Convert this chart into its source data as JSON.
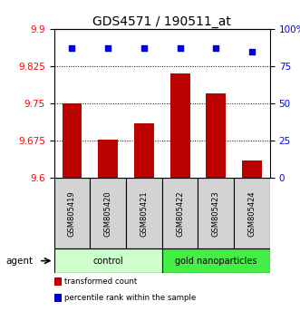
{
  "title": "GDS4571 / 190511_at",
  "samples": [
    "GSM805419",
    "GSM805420",
    "GSM805421",
    "GSM805422",
    "GSM805423",
    "GSM805424"
  ],
  "bar_values": [
    9.75,
    9.678,
    9.71,
    9.81,
    9.77,
    9.635
  ],
  "percentile_values": [
    87,
    87,
    87,
    87,
    87,
    85
  ],
  "bar_color": "#BB0000",
  "percentile_color": "#0000CC",
  "ylim_left": [
    9.6,
    9.9
  ],
  "ylim_right": [
    0,
    100
  ],
  "yticks_left": [
    9.6,
    9.675,
    9.75,
    9.825,
    9.9
  ],
  "ytick_labels_left": [
    "9.6",
    "9.675",
    "9.75",
    "9.825",
    "9.9"
  ],
  "yticks_right": [
    0,
    25,
    50,
    75,
    100
  ],
  "ytick_labels_right": [
    "0",
    "25",
    "50",
    "75",
    "100%"
  ],
  "groups": [
    {
      "label": "control",
      "indices": [
        0,
        1,
        2
      ],
      "color": "#CCFFCC"
    },
    {
      "label": "gold nanoparticles",
      "indices": [
        3,
        4,
        5
      ],
      "color": "#44EE44"
    }
  ],
  "legend_items": [
    {
      "label": "transformed count",
      "color": "#BB0000"
    },
    {
      "label": "percentile rank within the sample",
      "color": "#0000CC"
    }
  ],
  "agent_label": "agent",
  "title_fontsize": 10,
  "tick_fontsize": 7.5,
  "bar_width": 0.55
}
